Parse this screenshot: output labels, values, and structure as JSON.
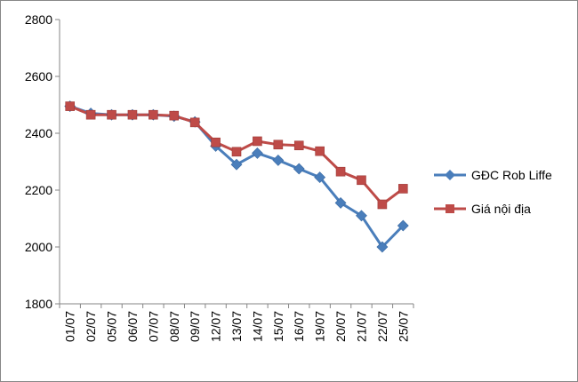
{
  "chart_data": {
    "type": "line",
    "title": "",
    "xlabel": "",
    "ylabel": "",
    "ylim": [
      1800,
      2800
    ],
    "yticks": [
      1800,
      2000,
      2200,
      2400,
      2600,
      2800
    ],
    "categories": [
      "01/07",
      "02/07",
      "05/07",
      "06/07",
      "07/07",
      "08/07",
      "09/07",
      "12/07",
      "13/07",
      "14/07",
      "15/07",
      "16/07",
      "19/07",
      "20/07",
      "21/07",
      "22/07",
      "25/07"
    ],
    "grid": false,
    "legend": "right",
    "series": [
      {
        "name": "GĐC Rob Liffe",
        "color": "#4a7ebb",
        "marker": "diamond",
        "values": [
          2495,
          2470,
          2465,
          2465,
          2465,
          2460,
          2440,
          2355,
          2290,
          2330,
          2305,
          2275,
          2245,
          2155,
          2110,
          2000,
          2075
        ]
      },
      {
        "name": "Giá nội địa",
        "color": "#be4b48",
        "marker": "square",
        "values": [
          2495,
          2465,
          2465,
          2465,
          2465,
          2462,
          2438,
          2368,
          2335,
          2372,
          2360,
          2357,
          2337,
          2265,
          2235,
          2150,
          2205
        ]
      }
    ]
  }
}
